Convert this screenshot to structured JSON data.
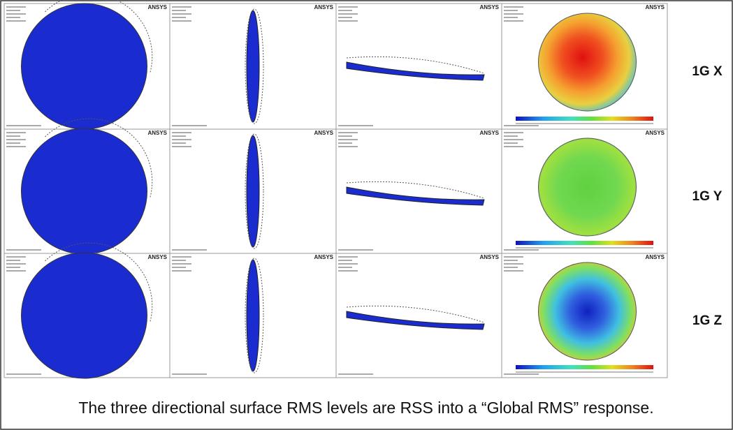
{
  "rows": [
    {
      "label": "1G X",
      "panels": [
        {
          "logo": "ANSYS"
        },
        {
          "logo": "ANSYS"
        },
        {
          "logo": "ANSYS"
        },
        {
          "logo": "ANSYS"
        }
      ]
    },
    {
      "label": "1G Y",
      "panels": [
        {
          "logo": "ANSYS"
        },
        {
          "logo": "ANSYS"
        },
        {
          "logo": "ANSYS"
        },
        {
          "logo": "ANSYS"
        }
      ]
    },
    {
      "label": "1G Z",
      "panels": [
        {
          "logo": "ANSYS"
        },
        {
          "logo": "ANSYS"
        },
        {
          "logo": "ANSYS"
        },
        {
          "logo": "ANSYS"
        }
      ]
    }
  ],
  "caption": "The three directional surface RMS levels are RSS into a “Global RMS” response."
}
